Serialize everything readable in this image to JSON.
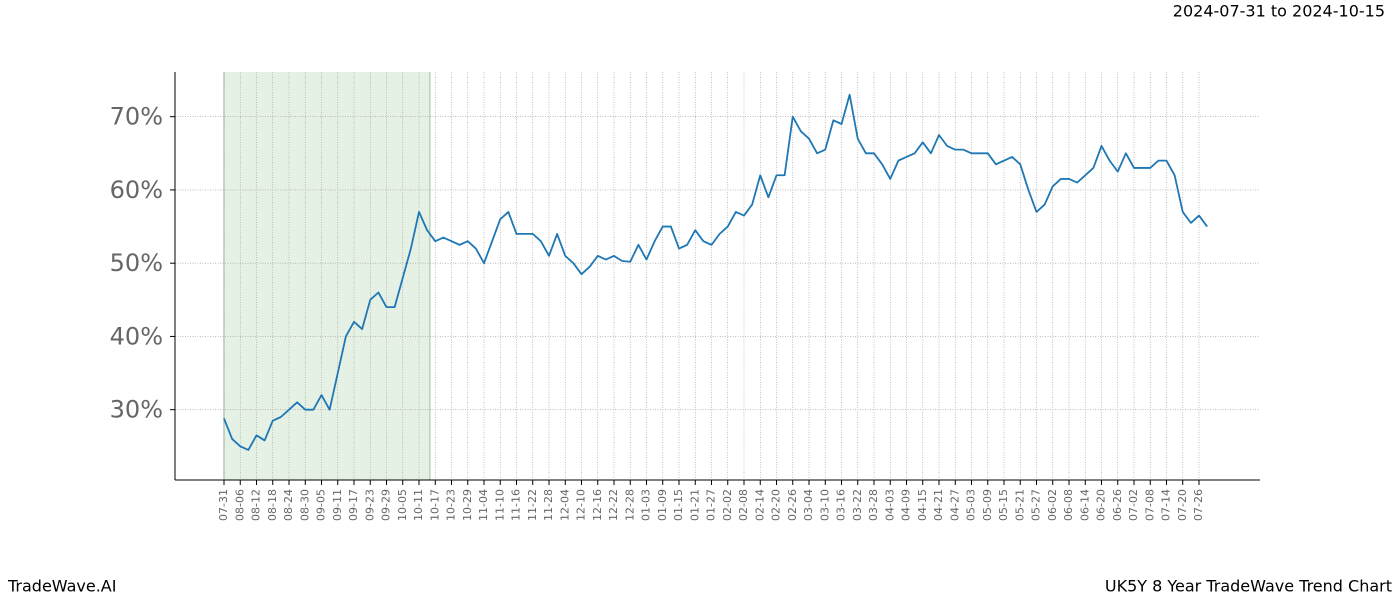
{
  "chart_data": {
    "type": "line",
    "date_range": "2024-07-31 to 2024-10-15",
    "highlight": {
      "start": "2024-07-31",
      "end": "2024-10-15",
      "color": "#e5f1e5"
    },
    "footer_left": "TradeWave.AI",
    "footer_right": "UK5Y 8 Year TradeWave Trend Chart",
    "categories": [
      "07-31",
      null,
      "08-06",
      null,
      "08-12",
      null,
      "08-18",
      null,
      "08-24",
      null,
      "08-30",
      null,
      "09-05",
      null,
      "09-11",
      null,
      "09-17",
      null,
      "09-23",
      null,
      "09-29",
      null,
      "10-05",
      null,
      "10-11",
      null,
      "10-17",
      null,
      "10-23",
      null,
      "10-29",
      null,
      "11-04",
      null,
      "11-10",
      null,
      "11-16",
      null,
      "11-22",
      null,
      "11-28",
      null,
      "12-04",
      null,
      "12-10",
      null,
      "12-16",
      null,
      "12-22",
      null,
      "12-28",
      null,
      "01-03",
      null,
      "01-09",
      null,
      "01-15",
      null,
      "01-21",
      null,
      "01-27",
      null,
      "02-02",
      null,
      "02-08",
      null,
      "02-14",
      null,
      "02-20",
      null,
      "02-26",
      null,
      "03-04",
      null,
      "03-10",
      null,
      "03-16",
      null,
      "03-22",
      null,
      "03-28",
      null,
      "04-03",
      null,
      "04-09",
      null,
      "04-15",
      null,
      "04-21",
      null,
      "04-27",
      null,
      "05-03",
      null,
      "05-09",
      null,
      "05-15",
      null,
      "05-21",
      null,
      "05-27",
      null,
      "06-02",
      null,
      "06-08",
      null,
      "06-14",
      null,
      "06-20",
      null,
      "06-26",
      null,
      "07-02",
      null,
      "07-08",
      null,
      "07-14",
      null,
      "07-20",
      null,
      "07-26",
      null
    ],
    "series": [
      {
        "name": "UK5Y",
        "color": "#1f77b4",
        "values": [
          28.8,
          26,
          25,
          24.5,
          26.5,
          25.8,
          28.5,
          29,
          30,
          31,
          30,
          30,
          32,
          30,
          35,
          40,
          42,
          41,
          45,
          46,
          44,
          44,
          48,
          52,
          57,
          54.5,
          53,
          53.5,
          53,
          52.5,
          53,
          52,
          50,
          53,
          56,
          57,
          54,
          54,
          54,
          53,
          51,
          54,
          51,
          50,
          48.5,
          49.5,
          51,
          50.5,
          51,
          50.3,
          50.2,
          52.5,
          50.5,
          53,
          55,
          55,
          52,
          52.5,
          54.5,
          53,
          52.5,
          54,
          55,
          57,
          56.5,
          58,
          62,
          59,
          62,
          62,
          70,
          68,
          67,
          65,
          65.5,
          69.5,
          69,
          73,
          67,
          65,
          65,
          63.5,
          61.5,
          64,
          64.5,
          65,
          66.5,
          65,
          67.5,
          66,
          65.5,
          65.5,
          65,
          65,
          65,
          63.5,
          64,
          64.5,
          63.5,
          60,
          57,
          58,
          60.5,
          61.5,
          61.5,
          61,
          62,
          63,
          66,
          64,
          62.5,
          65,
          63,
          63,
          63,
          64,
          64,
          62,
          57,
          55.5,
          56.5,
          55
        ]
      }
    ],
    "ylim": [
      20.4,
      76.1
    ],
    "yticks": [
      {
        "value": 30,
        "label": "30%"
      },
      {
        "value": 40,
        "label": "40%"
      },
      {
        "value": 50,
        "label": "50%"
      },
      {
        "value": 60,
        "label": "60%"
      },
      {
        "value": 70,
        "label": "70%"
      }
    ],
    "grid": true
  }
}
